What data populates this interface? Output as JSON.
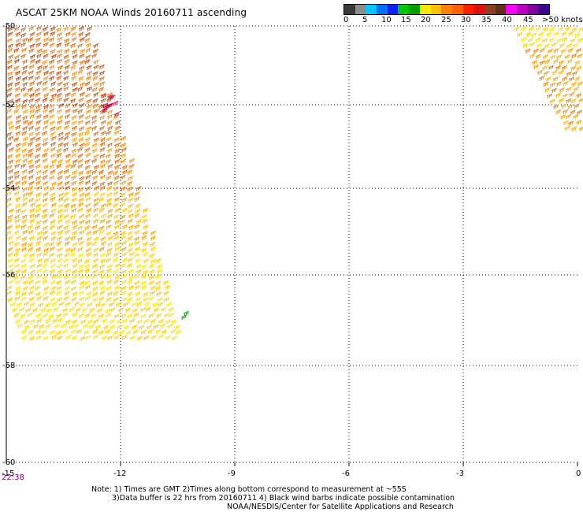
{
  "title": "ASCAT 25KM NOAA Winds 20160711 ascending",
  "legend": {
    "colors": [
      "#3a3a3a",
      "#8c8c8c",
      "#00c8ff",
      "#0070ff",
      "#1020ff",
      "#00c800",
      "#00a000",
      "#ffe800",
      "#ffc000",
      "#ff8000",
      "#ff6000",
      "#ff2000",
      "#e01010",
      "#8a4020",
      "#603018",
      "#ff00ff",
      "#c000c0",
      "#8000a0",
      "#400090"
    ],
    "labels": [
      "0",
      "5",
      "10",
      "15",
      "20",
      "25",
      "30",
      "35",
      "40",
      "45",
      ">50 knots"
    ]
  },
  "map": {
    "lat_labels": [
      "-50",
      "-52",
      "-54",
      "-56",
      "-58",
      "-60"
    ],
    "lon_labels": [
      "-15",
      "-12",
      "-9",
      "-6",
      "-3",
      "0"
    ]
  },
  "time_label": "22:38",
  "notes": {
    "line1": "Note: 1) Times are GMT 2)Times along bottom correspond to measurement at ~55S",
    "line2": "3)Data buffer is 22 hrs from 20160711 4) Black wind barbs indicate possible contamination"
  },
  "footer": "NOAA/NESDIS/Center for Satellite Applications and Research"
}
